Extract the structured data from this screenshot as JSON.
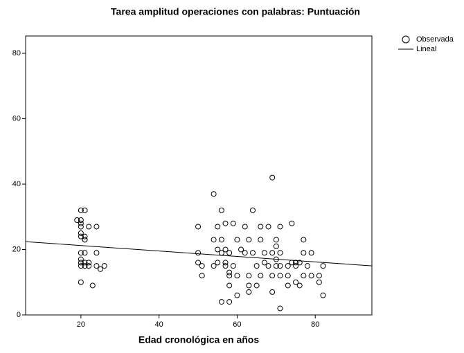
{
  "chart_data": {
    "type": "scatter",
    "title": "Tarea amplitud operaciones con palabras: Puntuación",
    "x_label": "Edad cronológica en años",
    "xlim": [
      5.84,
      94.5
    ],
    "xticks": [
      20,
      40,
      60,
      80
    ],
    "ylim": [
      0,
      85.3
    ],
    "yticks": [
      0,
      20,
      40,
      60,
      80
    ],
    "series": [
      {
        "name": "Observada",
        "color": "#000000",
        "x": [
          19,
          20,
          21,
          20,
          20,
          20,
          20,
          20,
          21,
          21,
          20,
          21,
          20,
          20,
          21,
          20,
          21,
          22,
          22,
          22,
          24,
          24,
          24,
          25,
          26,
          20,
          23,
          21,
          54,
          69,
          56,
          64,
          55,
          50,
          57,
          59,
          62,
          66,
          68,
          71,
          74,
          54,
          56,
          60,
          63,
          66,
          70,
          77,
          55,
          57,
          61,
          50,
          56,
          58,
          62,
          64,
          67,
          69,
          71,
          77,
          79,
          55,
          57,
          59,
          65,
          68,
          70,
          71,
          73,
          75,
          76,
          78,
          82,
          50,
          51,
          54,
          58,
          58,
          60,
          63,
          66,
          69,
          71,
          73,
          77,
          79,
          81,
          51,
          58,
          63,
          65,
          73,
          75,
          76,
          81,
          60,
          63,
          69,
          82,
          56,
          58,
          71,
          70,
          70,
          67,
          74,
          75,
          57
        ],
        "values": [
          29,
          32,
          32,
          29,
          28,
          27,
          25,
          24,
          24,
          23,
          19,
          19,
          17,
          16,
          16,
          15,
          15,
          16,
          15,
          27,
          27,
          19,
          15,
          14,
          15,
          10,
          9,
          23,
          37,
          42,
          32,
          32,
          27,
          27,
          28,
          28,
          27,
          27,
          27,
          27,
          28,
          23,
          23,
          23,
          23,
          23,
          23,
          23,
          20,
          20,
          20,
          19,
          19,
          19,
          19,
          19,
          19,
          19,
          19,
          19,
          19,
          16,
          16,
          15,
          15,
          15,
          15,
          15,
          15,
          15,
          16,
          15,
          15,
          16,
          15,
          15,
          13,
          12,
          12,
          12,
          12,
          12,
          12,
          12,
          12,
          12,
          12,
          12,
          9,
          9,
          9,
          9,
          10,
          9,
          10,
          6,
          7,
          7,
          6,
          4,
          4,
          2,
          21,
          17,
          16,
          16,
          16,
          15
        ]
      },
      {
        "name": "Lineal",
        "type": "line",
        "color": "#000000",
        "x": [
          5.84,
          94.5
        ],
        "values": [
          22.4,
          15.0
        ]
      }
    ]
  }
}
